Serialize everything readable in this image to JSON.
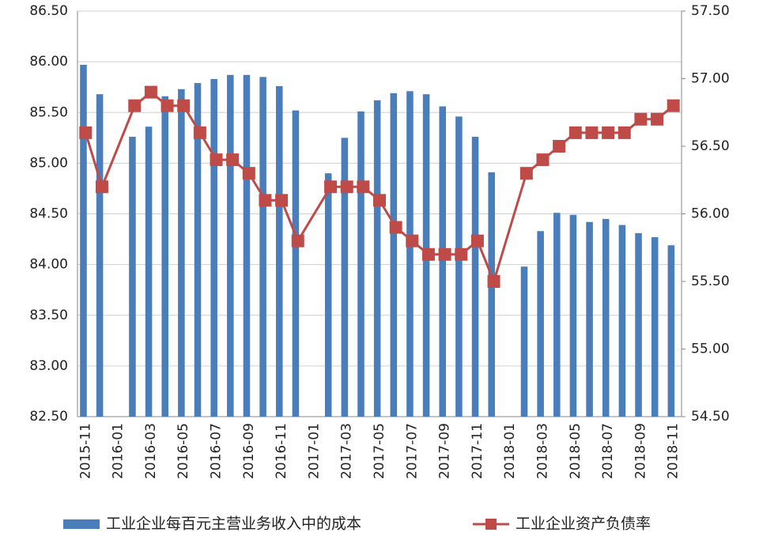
{
  "chart_data": {
    "type": "combo",
    "categories": [
      "2015-11",
      null,
      "2016-01",
      null,
      "2016-03",
      null,
      "2016-05",
      null,
      "2016-07",
      null,
      "2016-09",
      null,
      "2016-11",
      null,
      "2017-01",
      null,
      "2017-03",
      null,
      "2017-05",
      null,
      "2017-07",
      null,
      "2017-09",
      null,
      "2017-11",
      null,
      "2018-01",
      null,
      "2018-03",
      null,
      "2018-05",
      null,
      "2018-07",
      null,
      "2018-09",
      null,
      "2018-11"
    ],
    "series": [
      {
        "name": "工业企业每百元主营业务收入中的成本",
        "type": "bar",
        "color": "#4a7ebb",
        "values": [
          85.97,
          85.68,
          null,
          85.26,
          85.36,
          85.66,
          85.73,
          85.79,
          85.83,
          85.87,
          85.87,
          85.85,
          85.76,
          85.52,
          null,
          84.9,
          85.25,
          85.51,
          85.62,
          85.69,
          85.71,
          85.68,
          85.56,
          85.46,
          85.26,
          84.91,
          null,
          83.98,
          84.33,
          84.51,
          84.49,
          84.42,
          84.45,
          84.39,
          84.31,
          84.27,
          84.19
        ]
      },
      {
        "name": "工业企业资产负债率",
        "type": "line",
        "axis": "y2",
        "color": "#be4b48",
        "values": [
          56.6,
          56.2,
          null,
          56.8,
          56.9,
          56.8,
          56.8,
          56.6,
          56.4,
          56.4,
          56.3,
          56.1,
          56.1,
          55.8,
          null,
          56.2,
          56.2,
          56.2,
          56.1,
          55.9,
          55.8,
          55.7,
          55.7,
          55.7,
          55.8,
          55.5,
          null,
          56.3,
          56.4,
          56.5,
          56.6,
          56.6,
          56.6,
          56.6,
          56.7,
          56.7,
          56.8
        ]
      }
    ],
    "span_gaps": true,
    "ylim": [
      82.5,
      86.5
    ],
    "yticks": [
      {
        "value": 82.5,
        "label": "82.50"
      },
      {
        "value": 83,
        "label": "83.00"
      },
      {
        "value": 83.5,
        "label": "83.50"
      },
      {
        "value": 84,
        "label": "84.00"
      },
      {
        "value": 84.5,
        "label": "84.50"
      },
      {
        "value": 85,
        "label": "85.00"
      },
      {
        "value": 85.5,
        "label": "85.50"
      },
      {
        "value": 86,
        "label": "86.00"
      },
      {
        "value": 86.5,
        "label": "86.50"
      }
    ],
    "y2lim": [
      54.5,
      57.5
    ],
    "y2ticks": [
      {
        "value": 54.5,
        "label": "54.50"
      },
      {
        "value": 55,
        "label": "55.00"
      },
      {
        "value": 55.5,
        "label": "55.50"
      },
      {
        "value": 56,
        "label": "56.00"
      },
      {
        "value": 56.5,
        "label": "56.50"
      },
      {
        "value": 57,
        "label": "57.00"
      },
      {
        "value": 57.5,
        "label": "57.50"
      }
    ],
    "grid": true,
    "legend": "bottom"
  }
}
